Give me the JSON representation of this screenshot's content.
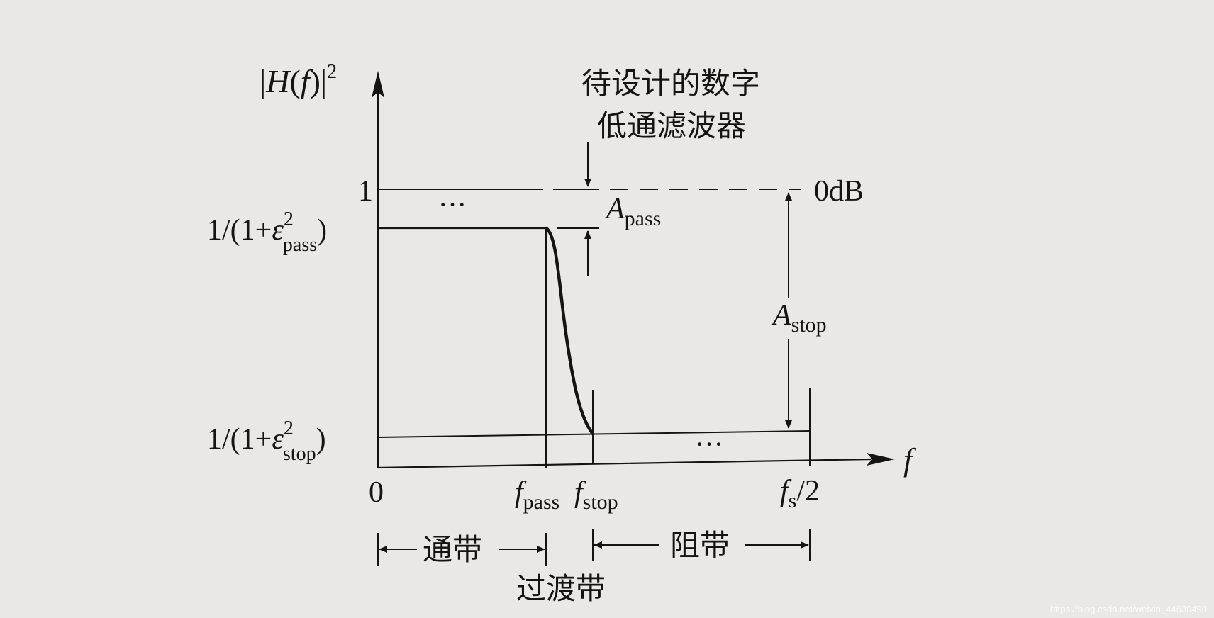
{
  "annotation": {
    "line1": "待设计的数字",
    "line2": "低通滤波器"
  },
  "axes": {
    "y_label": {
      "prefix": "|",
      "H": "H",
      "mid": "(",
      "f": "f",
      "close": ")|",
      "exp": "2"
    },
    "x_label": "f",
    "origin": "0"
  },
  "levels": {
    "one": "1",
    "zero_db": "0dB",
    "pass_level": {
      "prefix": "1/(1+",
      "eps": "ε",
      "sup": "2",
      "sub": "pass",
      "suffix": ")"
    },
    "stop_level": {
      "prefix": "1/(1+",
      "eps": "ε",
      "sup": "2",
      "sub": "stop",
      "suffix": ")"
    }
  },
  "labels": {
    "a_pass": {
      "base": "A",
      "sub": "pass"
    },
    "a_stop": {
      "base": "A",
      "sub": "stop"
    },
    "f_pass": {
      "base": "f",
      "sub": "pass"
    },
    "f_stop": {
      "base": "f",
      "sub": "stop"
    },
    "fs_half": {
      "base": "f",
      "sub": "s",
      "suffix": "/2"
    },
    "ellipsis_pass": "···",
    "ellipsis_stop": "···"
  },
  "bands": {
    "passband": "通带",
    "stopband": "阻带",
    "transition": "过渡带"
  },
  "watermark": "https://blog.csdn.net/weixin_44630490",
  "colors": {
    "ink": "#141414",
    "paper": "#e9e8e6"
  }
}
